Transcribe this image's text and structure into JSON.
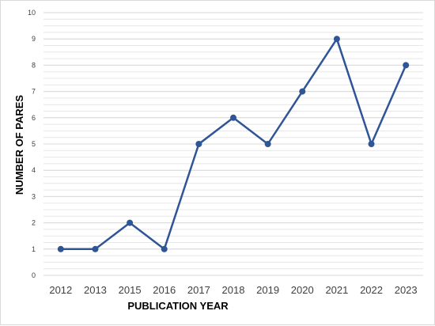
{
  "chart_data": {
    "type": "line",
    "xlabel": "PUBLICATION YEAR",
    "ylabel": "NUMBER OF PARES",
    "categories": [
      "2012",
      "2013",
      "2015",
      "2016",
      "2017",
      "2018",
      "2019",
      "2020",
      "2021",
      "2022",
      "2023"
    ],
    "series": [
      {
        "values": [
          1,
          1,
          2,
          1,
          5,
          6,
          5,
          7,
          9,
          5,
          8
        ]
      }
    ],
    "ylim": [
      0,
      10
    ],
    "yticks": [
      "0",
      "1",
      "2",
      "3",
      "4",
      "5",
      "6",
      "7",
      "8",
      "9",
      "10"
    ],
    "grid": true,
    "legend": "none",
    "colors": {
      "series": "#2f5597",
      "grid": "#d9d9d9"
    }
  }
}
